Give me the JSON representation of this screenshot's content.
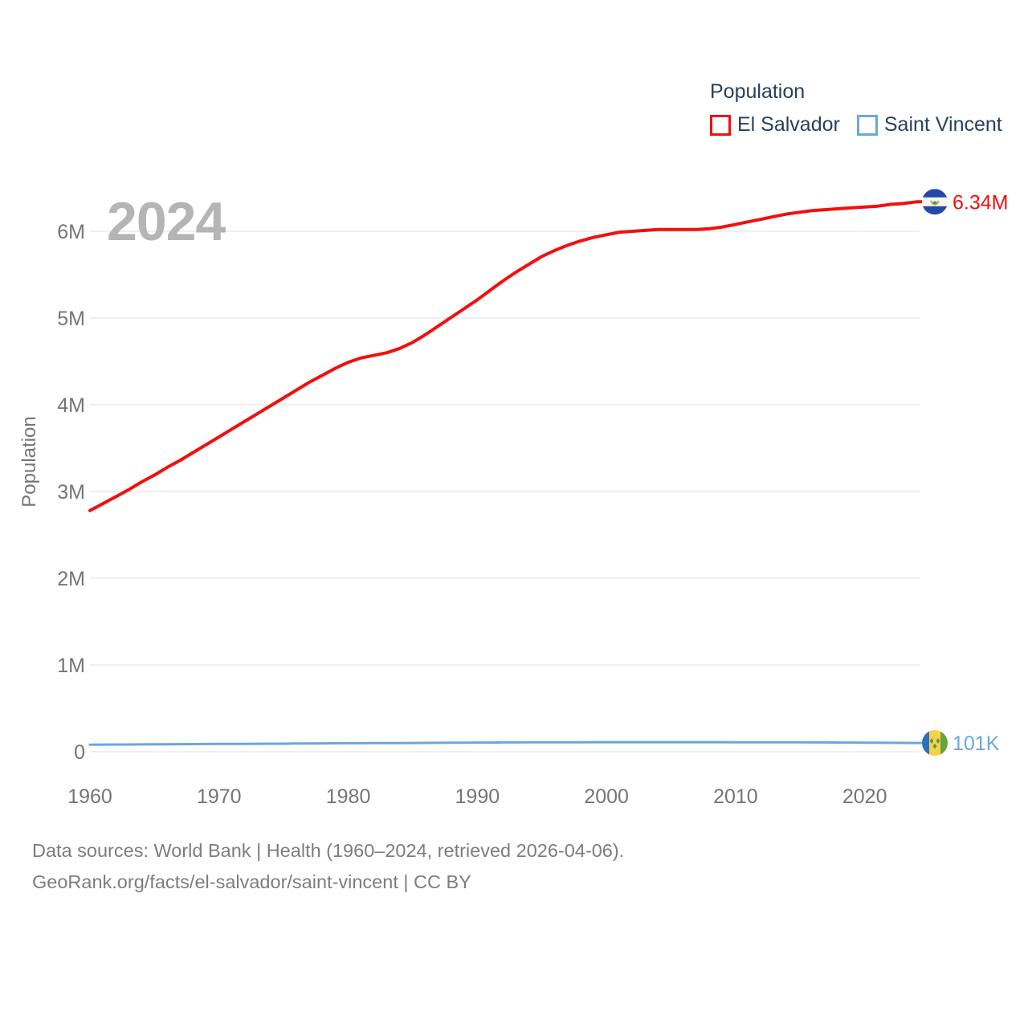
{
  "legend": {
    "title": "Population",
    "items": [
      {
        "label": "El Salvador",
        "color": "#f10f0f"
      },
      {
        "label": "Saint Vincent",
        "color": "#6aa7e0"
      }
    ]
  },
  "watermark": "2024",
  "chart_data": {
    "type": "line",
    "title": "Population",
    "ylabel": "Population",
    "xlabel": "",
    "x_start": 1960,
    "x_end": 2024,
    "x_ticks": [
      1960,
      1970,
      1980,
      1990,
      2000,
      2010,
      2020
    ],
    "y_ticks": [
      {
        "value": 0,
        "label": "0"
      },
      {
        "value": 1,
        "label": "1M"
      },
      {
        "value": 2,
        "label": "2M"
      },
      {
        "value": 3,
        "label": "3M"
      },
      {
        "value": 4,
        "label": "4M"
      },
      {
        "value": 5,
        "label": "5M"
      },
      {
        "value": 6,
        "label": "6M"
      }
    ],
    "ylim_millions": [
      0,
      6.5
    ],
    "grid": true,
    "legend_position": "top-right",
    "series": [
      {
        "name": "El Salvador",
        "color": "#f10f0f",
        "flag": "el-salvador",
        "end_label": "6.34M",
        "unit": "millions",
        "values_millions": [
          2.78,
          2.86,
          2.94,
          3.02,
          3.11,
          3.19,
          3.28,
          3.36,
          3.45,
          3.54,
          3.63,
          3.72,
          3.81,
          3.9,
          3.99,
          4.08,
          4.17,
          4.26,
          4.34,
          4.42,
          4.49,
          4.54,
          4.57,
          4.6,
          4.65,
          4.72,
          4.81,
          4.91,
          5.01,
          5.11,
          5.21,
          5.32,
          5.43,
          5.53,
          5.62,
          5.71,
          5.78,
          5.84,
          5.89,
          5.93,
          5.96,
          5.99,
          6.0,
          6.01,
          6.02,
          6.02,
          6.02,
          6.02,
          6.03,
          6.05,
          6.08,
          6.11,
          6.14,
          6.17,
          6.2,
          6.22,
          6.24,
          6.25,
          6.26,
          6.27,
          6.28,
          6.29,
          6.31,
          6.32,
          6.34
        ]
      },
      {
        "name": "Saint Vincent",
        "color": "#6aa7e0",
        "flag": "saint-vincent",
        "end_label": "101K",
        "unit": "millions",
        "values_millions": [
          0.081,
          0.082,
          0.083,
          0.083,
          0.084,
          0.085,
          0.086,
          0.087,
          0.088,
          0.089,
          0.09,
          0.09,
          0.091,
          0.092,
          0.093,
          0.093,
          0.094,
          0.095,
          0.096,
          0.097,
          0.098,
          0.098,
          0.099,
          0.1,
          0.1,
          0.101,
          0.102,
          0.103,
          0.104,
          0.105,
          0.106,
          0.106,
          0.107,
          0.107,
          0.108,
          0.108,
          0.109,
          0.109,
          0.109,
          0.11,
          0.11,
          0.11,
          0.11,
          0.11,
          0.11,
          0.11,
          0.11,
          0.11,
          0.11,
          0.11,
          0.109,
          0.109,
          0.109,
          0.109,
          0.108,
          0.108,
          0.107,
          0.107,
          0.106,
          0.106,
          0.105,
          0.104,
          0.103,
          0.102,
          0.101
        ]
      }
    ]
  },
  "colors": {
    "grid": "#eaeaea",
    "axis_text": "#757575",
    "watermark": "#b5b5b5",
    "legend_text": "#2a3f5f",
    "footer_text": "#7d7d7d"
  },
  "flags": {
    "el_salvador": {
      "blue": "#2449a8",
      "white": "#f7f7f7",
      "emblem_gold": "#e6b422",
      "emblem_teal": "#35a08a"
    },
    "saint_vincent": {
      "blue": "#2f6fc1",
      "yellow": "#f7d14a",
      "green": "#64a53e",
      "diamond": "#4e9c3c"
    }
  },
  "footer": {
    "line1": "Data sources: World Bank | Health (1960–2024, retrieved 2026-04-06).",
    "line2": "GeoRank.org/facts/el-salvador/saint-vincent | CC BY"
  }
}
